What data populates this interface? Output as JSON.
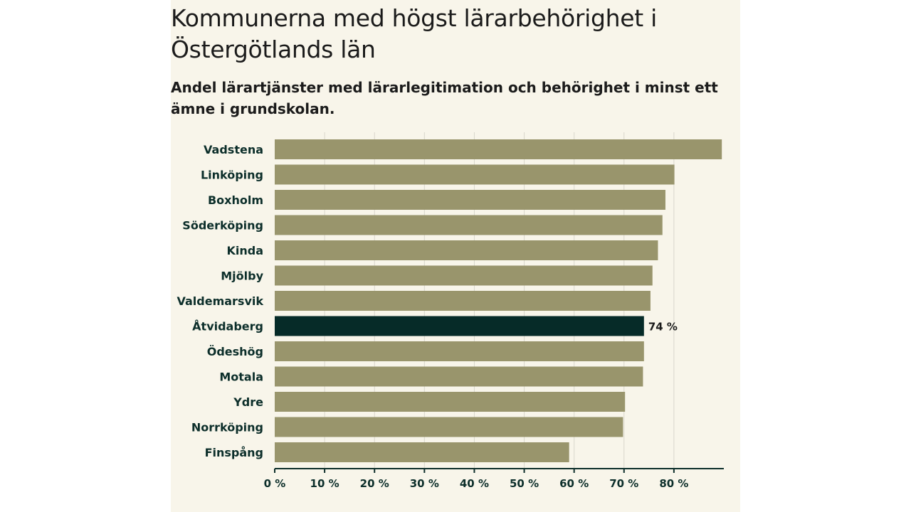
{
  "title": "Kommunerna med högst lärarbehörighet i Östergötlands län",
  "subtitle": "Andel lärartjänster med lärarlegitimation och behörighet i minst ett ämne i grundskolan.",
  "colors": {
    "background": "#f8f5ea",
    "bar": "#99956c",
    "highlight": "#062b28",
    "grid": "#d9d6cc",
    "axis": "#0c2e2a",
    "label": "#0c2e2a"
  },
  "chart_data": {
    "type": "bar",
    "orientation": "horizontal",
    "title": "Kommunerna med högst lärarbehörighet i Östergötlands län",
    "subtitle": "Andel lärartjänster med lärarlegitimation och behörighet i minst ett ämne i grundskolan.",
    "xlabel": "",
    "ylabel": "",
    "xlim": [
      0,
      90
    ],
    "grid": true,
    "categories": [
      "Vadstena",
      "Linköping",
      "Boxholm",
      "Söderköping",
      "Kinda",
      "Mjölby",
      "Valdemarsvik",
      "Åtvidaberg",
      "Ödeshög",
      "Motala",
      "Ydre",
      "Norrköping",
      "Finspång"
    ],
    "values": [
      89.6,
      80.1,
      78.3,
      77.7,
      76.8,
      75.7,
      75.3,
      74,
      74,
      73.8,
      70.2,
      69.8,
      59
    ],
    "highlight_index": 7,
    "data_labels": [
      {
        "index": 7,
        "text": "74 %"
      }
    ],
    "x_ticks": [
      0,
      10,
      20,
      30,
      40,
      50,
      60,
      70,
      80
    ],
    "x_tick_labels": [
      "0 %",
      "10 %",
      "20 %",
      "30 %",
      "40 %",
      "50 %",
      "60 %",
      "70 %",
      "80 %"
    ]
  }
}
